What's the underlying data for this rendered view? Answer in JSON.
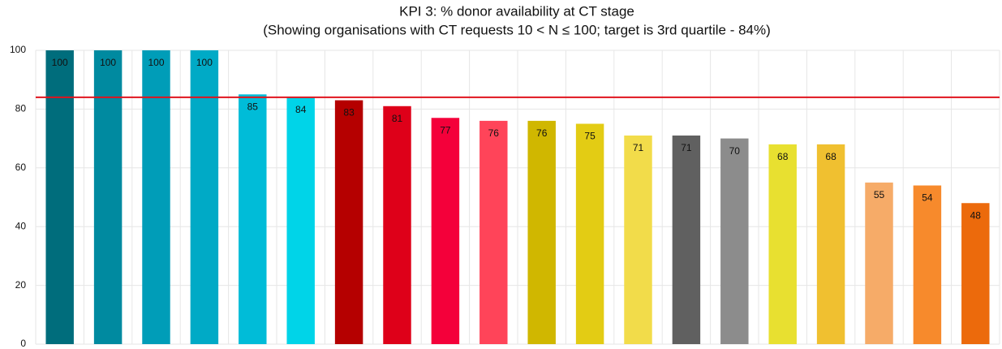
{
  "chart_data": {
    "type": "bar",
    "title": "KPI 3: % donor availability at CT stage",
    "subtitle": "(Showing organisations with CT requests 10 < N ≤ 100; target is 3rd quartile - 84%)",
    "categories": [
      null,
      null,
      null,
      null,
      null,
      null,
      null,
      null,
      null,
      null,
      null,
      null,
      null,
      null,
      null,
      null,
      null,
      null,
      null,
      null
    ],
    "values": [
      100,
      100,
      100,
      100,
      85,
      84,
      83,
      81,
      77,
      76,
      76,
      75,
      71,
      71,
      70,
      68,
      68,
      55,
      54,
      48
    ],
    "colors": [
      "#006d7c",
      "#008aa0",
      "#009db8",
      "#00aac6",
      "#00bcd8",
      "#00d4e8",
      "#b50000",
      "#de0019",
      "#f4003a",
      "#ff4459",
      "#d0b700",
      "#e3cc14",
      "#f2dc4a",
      "#606060",
      "#8c8c8c",
      "#e8e030",
      "#f0c030",
      "#f6ab68",
      "#f78a2c",
      "#ec6a0c"
    ],
    "target": 84,
    "target_color": "#e0141e",
    "ylim": [
      0,
      100
    ],
    "yticks": [
      0,
      20,
      40,
      60,
      80,
      100
    ],
    "grid": true
  }
}
